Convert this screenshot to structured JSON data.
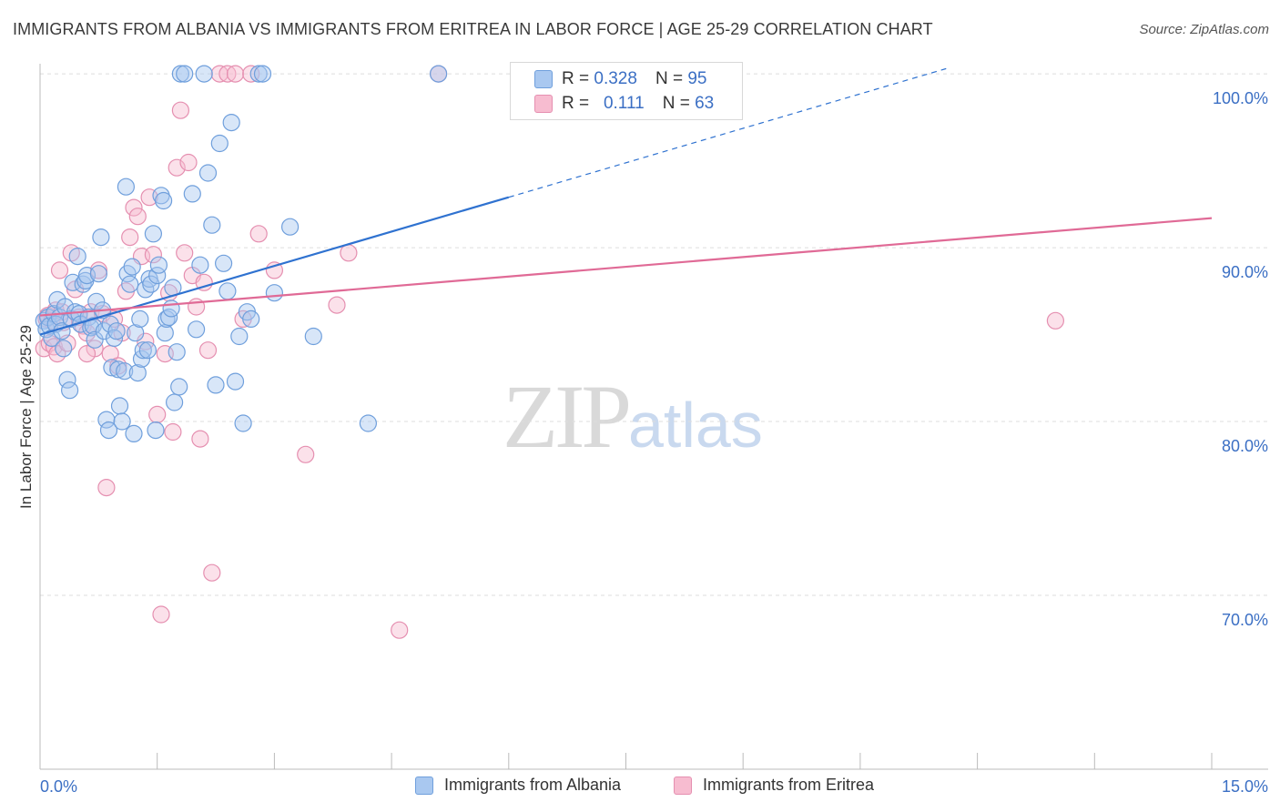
{
  "title": "IMMIGRANTS FROM ALBANIA VS IMMIGRANTS FROM ERITREA IN LABOR FORCE | AGE 25-29 CORRELATION CHART",
  "source": "Source: ZipAtlas.com",
  "watermark": {
    "zip": "ZIP",
    "atlas": "atlas"
  },
  "legend_top": {
    "rows": [
      {
        "r_label": "R =",
        "r_value": "0.328",
        "n_label": "N =",
        "n_value": "95"
      },
      {
        "r_label": "R =",
        "r_value": "0.111",
        "n_label": "N =",
        "n_value": "63"
      }
    ]
  },
  "legend_bottom": [
    "Immigrants from Albania",
    "Immigrants from Eritrea"
  ],
  "colors": {
    "albania_fill": "#a9c8f0",
    "albania_stroke": "#6f9fdc",
    "albania_line": "#2f72d0",
    "eritrea_fill": "#f7bcd0",
    "eritrea_stroke": "#e58fb0",
    "eritrea_line": "#e06a96",
    "grid": "#dddddd",
    "axis_text": "#3b6fc4"
  },
  "chart_data": {
    "type": "scatter",
    "title": "IMMIGRANTS FROM ALBANIA VS IMMIGRANTS FROM ERITREA IN LABOR FORCE | AGE 25-29 CORRELATION CHART",
    "xlabel": "",
    "ylabel": "In Labor Force | Age 25-29",
    "xlim": [
      0,
      15
    ],
    "ylim": [
      60,
      101
    ],
    "x_tick_labels": [
      "0.0%",
      "15.0%"
    ],
    "y_ticks": [
      70,
      80,
      90,
      100
    ],
    "y_tick_labels": [
      "70.0%",
      "80.0%",
      "90.0%",
      "100.0%"
    ],
    "series": [
      {
        "name": "Immigrants from Albania",
        "R": 0.328,
        "N": 95,
        "trend": {
          "x0": 0.0,
          "y0": 85.0,
          "x1": 6.0,
          "y1": 92.9,
          "dashed_to_x": 11.6,
          "dashed_to_y": 100.3
        },
        "points": [
          [
            0.05,
            85.8
          ],
          [
            0.08,
            85.3
          ],
          [
            0.1,
            86.0
          ],
          [
            0.12,
            85.5
          ],
          [
            0.15,
            84.8
          ],
          [
            0.18,
            86.2
          ],
          [
            0.2,
            85.6
          ],
          [
            0.22,
            87.0
          ],
          [
            0.25,
            86.0
          ],
          [
            0.28,
            85.2
          ],
          [
            0.3,
            84.2
          ],
          [
            0.32,
            86.6
          ],
          [
            0.35,
            82.4
          ],
          [
            0.38,
            81.8
          ],
          [
            0.4,
            85.9
          ],
          [
            0.42,
            88.0
          ],
          [
            0.45,
            86.3
          ],
          [
            0.48,
            89.5
          ],
          [
            0.5,
            86.2
          ],
          [
            0.52,
            85.6
          ],
          [
            0.55,
            87.9
          ],
          [
            0.58,
            88.1
          ],
          [
            0.6,
            88.4
          ],
          [
            0.62,
            86.0
          ],
          [
            0.65,
            85.4
          ],
          [
            0.68,
            85.5
          ],
          [
            0.7,
            84.7
          ],
          [
            0.72,
            86.9
          ],
          [
            0.75,
            88.5
          ],
          [
            0.78,
            90.6
          ],
          [
            0.8,
            86.4
          ],
          [
            0.82,
            85.2
          ],
          [
            0.85,
            80.1
          ],
          [
            0.88,
            79.5
          ],
          [
            0.9,
            85.6
          ],
          [
            0.92,
            83.1
          ],
          [
            0.95,
            84.8
          ],
          [
            0.98,
            85.2
          ],
          [
            1.0,
            83.0
          ],
          [
            1.02,
            80.9
          ],
          [
            1.05,
            80.0
          ],
          [
            1.08,
            82.9
          ],
          [
            1.1,
            93.5
          ],
          [
            1.12,
            88.5
          ],
          [
            1.15,
            87.9
          ],
          [
            1.18,
            88.9
          ],
          [
            1.2,
            79.3
          ],
          [
            1.22,
            85.1
          ],
          [
            1.25,
            82.8
          ],
          [
            1.28,
            85.9
          ],
          [
            1.3,
            83.6
          ],
          [
            1.32,
            84.1
          ],
          [
            1.35,
            87.6
          ],
          [
            1.38,
            84.1
          ],
          [
            1.4,
            88.2
          ],
          [
            1.42,
            87.9
          ],
          [
            1.45,
            90.8
          ],
          [
            1.48,
            79.5
          ],
          [
            1.5,
            88.4
          ],
          [
            1.52,
            89.0
          ],
          [
            1.55,
            93.0
          ],
          [
            1.58,
            92.7
          ],
          [
            1.6,
            85.1
          ],
          [
            1.62,
            85.9
          ],
          [
            1.65,
            86.0
          ],
          [
            1.68,
            86.5
          ],
          [
            1.7,
            87.7
          ],
          [
            1.72,
            81.1
          ],
          [
            1.75,
            84.0
          ],
          [
            1.78,
            82.0
          ],
          [
            1.8,
            100.0
          ],
          [
            1.85,
            100.0
          ],
          [
            1.95,
            93.1
          ],
          [
            2.0,
            85.3
          ],
          [
            2.05,
            89.0
          ],
          [
            2.1,
            100.0
          ],
          [
            2.15,
            94.3
          ],
          [
            2.2,
            91.3
          ],
          [
            2.25,
            82.1
          ],
          [
            2.3,
            96.0
          ],
          [
            2.35,
            89.1
          ],
          [
            2.4,
            87.5
          ],
          [
            2.45,
            97.2
          ],
          [
            2.5,
            82.3
          ],
          [
            2.55,
            84.9
          ],
          [
            2.6,
            79.9
          ],
          [
            2.65,
            86.3
          ],
          [
            2.7,
            85.9
          ],
          [
            2.8,
            100.0
          ],
          [
            2.85,
            100.0
          ],
          [
            3.0,
            87.4
          ],
          [
            3.2,
            91.2
          ],
          [
            3.5,
            84.9
          ],
          [
            4.2,
            79.9
          ],
          [
            5.1,
            100.0
          ]
        ]
      },
      {
        "name": "Immigrants from Eritrea",
        "R": 0.111,
        "N": 63,
        "trend": {
          "x0": 0.0,
          "y0": 86.1,
          "x1": 15.0,
          "y1": 91.7
        },
        "points": [
          [
            0.05,
            84.2
          ],
          [
            0.08,
            85.9
          ],
          [
            0.1,
            86.1
          ],
          [
            0.12,
            84.5
          ],
          [
            0.15,
            85.8
          ],
          [
            0.18,
            84.3
          ],
          [
            0.2,
            86.4
          ],
          [
            0.22,
            83.9
          ],
          [
            0.25,
            88.7
          ],
          [
            0.28,
            86.3
          ],
          [
            0.3,
            85.7
          ],
          [
            0.35,
            84.5
          ],
          [
            0.4,
            89.7
          ],
          [
            0.45,
            87.6
          ],
          [
            0.5,
            86.0
          ],
          [
            0.55,
            85.5
          ],
          [
            0.6,
            85.1
          ],
          [
            0.65,
            86.3
          ],
          [
            0.7,
            84.2
          ],
          [
            0.75,
            88.7
          ],
          [
            0.8,
            86.2
          ],
          [
            0.85,
            76.2
          ],
          [
            0.9,
            83.9
          ],
          [
            0.95,
            85.9
          ],
          [
            1.0,
            83.2
          ],
          [
            1.05,
            85.1
          ],
          [
            1.1,
            87.5
          ],
          [
            1.15,
            90.6
          ],
          [
            1.2,
            92.3
          ],
          [
            1.25,
            91.8
          ],
          [
            1.3,
            89.5
          ],
          [
            1.35,
            84.6
          ],
          [
            1.4,
            92.9
          ],
          [
            1.45,
            89.6
          ],
          [
            1.5,
            80.4
          ],
          [
            1.55,
            68.9
          ],
          [
            1.6,
            83.9
          ],
          [
            1.65,
            87.4
          ],
          [
            1.7,
            79.4
          ],
          [
            1.75,
            94.6
          ],
          [
            1.8,
            97.9
          ],
          [
            1.85,
            89.7
          ],
          [
            1.9,
            94.9
          ],
          [
            1.95,
            88.4
          ],
          [
            2.0,
            86.6
          ],
          [
            2.05,
            79.0
          ],
          [
            2.1,
            88.0
          ],
          [
            2.15,
            84.1
          ],
          [
            2.2,
            71.3
          ],
          [
            2.3,
            100.0
          ],
          [
            2.4,
            100.0
          ],
          [
            2.5,
            100.0
          ],
          [
            2.6,
            85.9
          ],
          [
            2.7,
            100.0
          ],
          [
            2.8,
            90.8
          ],
          [
            3.0,
            88.7
          ],
          [
            3.4,
            78.1
          ],
          [
            3.8,
            86.7
          ],
          [
            3.95,
            89.7
          ],
          [
            4.6,
            68.0
          ],
          [
            5.1,
            100.0
          ],
          [
            13.0,
            85.8
          ],
          [
            0.6,
            83.9
          ]
        ]
      }
    ]
  }
}
